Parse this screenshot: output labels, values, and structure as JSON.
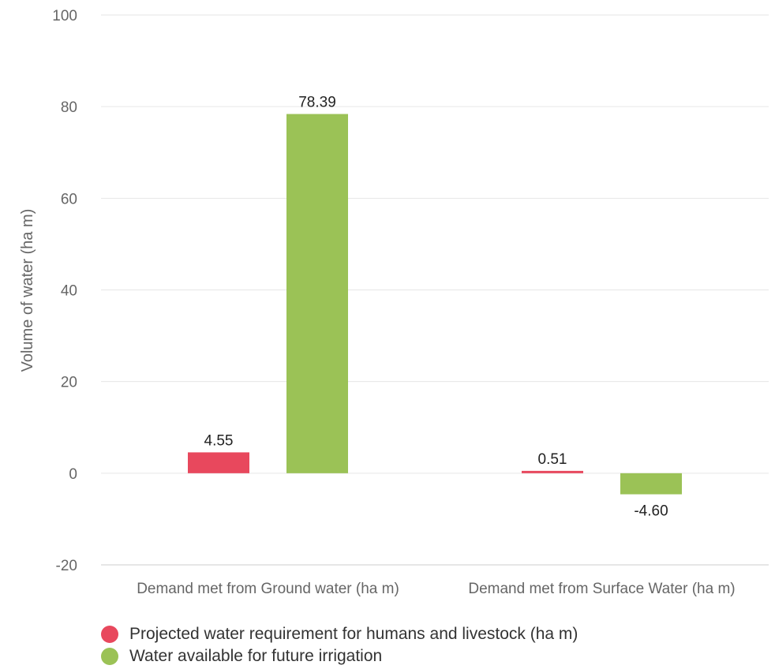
{
  "chart_data": {
    "type": "bar",
    "ylabel": "Volume of water (ha m)",
    "ylim": [
      -20,
      100
    ],
    "yticks": [
      -20,
      0,
      20,
      40,
      60,
      80,
      100
    ],
    "grid": true,
    "legend_position": "bottom-left",
    "categories": [
      "Demand met from Ground water (ha m)",
      "Demand met from Surface Water (ha m)"
    ],
    "series": [
      {
        "name": "Projected water requirement for humans and livestock (ha m)",
        "color": "#e8485d",
        "values": [
          4.55,
          0.51
        ],
        "labels": [
          "4.55",
          "0.51"
        ]
      },
      {
        "name": "Water available for future irrigation",
        "color": "#9bc256",
        "values": [
          78.39,
          -4.6
        ],
        "labels": [
          "78.39",
          "-4.60"
        ]
      }
    ]
  }
}
